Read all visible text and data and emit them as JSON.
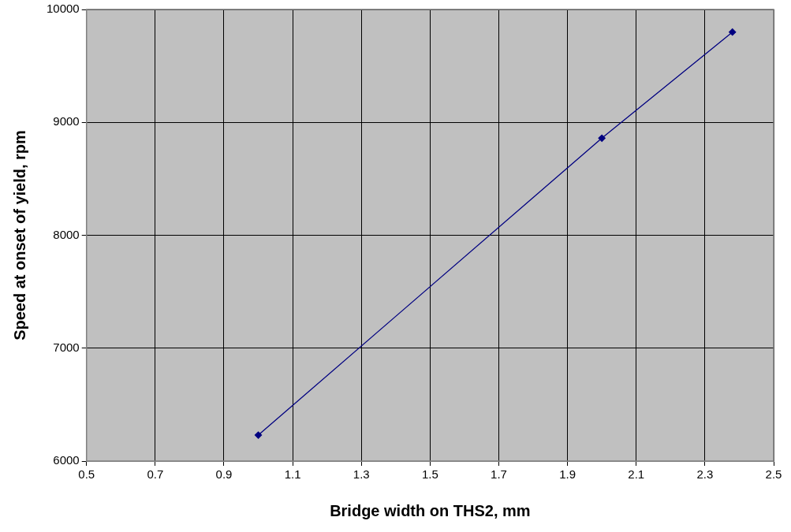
{
  "chart_data": {
    "type": "line",
    "xlabel": "Bridge width on THS2, mm",
    "ylabel": "Speed at onset of yield, rpm",
    "x": [
      1.0,
      2.0,
      2.38
    ],
    "series": [
      {
        "color": "#000080",
        "values": [
          6230,
          8860,
          9800
        ]
      }
    ],
    "xlim": [
      0.5,
      2.5
    ],
    "xticks": [
      {
        "value": 0.5,
        "label": "0.5"
      },
      {
        "value": 0.7,
        "label": "0.7"
      },
      {
        "value": 0.9,
        "label": "0.9"
      },
      {
        "value": 1.1,
        "label": "1.1"
      },
      {
        "value": 1.3,
        "label": "1.3"
      },
      {
        "value": 1.5,
        "label": "1.5"
      },
      {
        "value": 1.7,
        "label": "1.7"
      },
      {
        "value": 1.9,
        "label": "1.9"
      },
      {
        "value": 2.1,
        "label": "2.1"
      },
      {
        "value": 2.3,
        "label": "2.3"
      },
      {
        "value": 2.5,
        "label": "2.5"
      }
    ],
    "ylim": [
      6000,
      10000
    ],
    "yticks": [
      6000,
      7000,
      8000,
      9000,
      10000
    ],
    "grid": true,
    "legend": false,
    "marker": "diamond",
    "line_style": "solid"
  }
}
